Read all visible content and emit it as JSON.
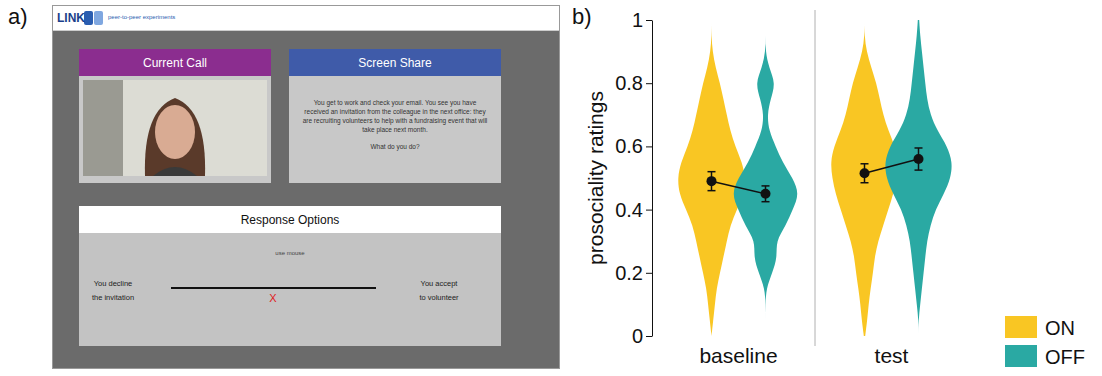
{
  "panel_labels": [
    "a)",
    "b)"
  ],
  "interface": {
    "logo": "LINK",
    "logo_subtitle": "peer-to-peer experiments",
    "call_panel": {
      "title": "Current Call"
    },
    "share_panel": {
      "title": "Screen Share",
      "paragraphs": [
        "You get to work and check your email. You see you have received an invitation from the colleague in the next office: they are recruiting volunteers to help with a fundraising event that will take place next month.",
        "What do you do?"
      ]
    },
    "response_panel": {
      "title": "Response Options",
      "hint": "use mouse",
      "left_label": [
        "You decline",
        "the invitation"
      ],
      "right_label": [
        "You accept",
        "to volunteer"
      ],
      "marker": "X"
    }
  },
  "chart_data": {
    "type": "violin",
    "y_label": "prosociality ratings",
    "categories": [
      "baseline",
      "test"
    ],
    "ylim": [
      0,
      1
    ],
    "yticks": [
      0,
      0.2,
      0.4,
      0.6,
      0.8,
      1
    ],
    "legend": "lower right",
    "density_y": [
      0,
      0.05,
      0.1,
      0.15,
      0.2,
      0.25,
      0.3,
      0.35,
      0.4,
      0.45,
      0.5,
      0.55,
      0.6,
      0.65,
      0.7,
      0.75,
      0.8,
      0.85,
      0.9,
      0.95,
      1
    ],
    "series": [
      {
        "name": "ON",
        "color": "#f9c623",
        "values": [
          0.49,
          0.515
        ],
        "errors": [
          0.03,
          0.03
        ],
        "densities": [
          [
            0,
            0.05,
            0.1,
            0.15,
            0.25,
            0.35,
            0.45,
            0.55,
            0.75,
            0.95,
            1.0,
            0.9,
            0.7,
            0.55,
            0.45,
            0.35,
            0.25,
            0.12,
            0.03,
            0,
            0
          ],
          [
            0.02,
            0.08,
            0.12,
            0.18,
            0.25,
            0.3,
            0.4,
            0.55,
            0.7,
            0.85,
            0.95,
            1.0,
            0.9,
            0.7,
            0.55,
            0.45,
            0.35,
            0.2,
            0.06,
            0,
            0
          ]
        ]
      },
      {
        "name": "OFF",
        "color": "#2aa9a3",
        "values": [
          0.45,
          0.56
        ],
        "errors": [
          0.025,
          0.035
        ],
        "densities": [
          [
            0,
            0,
            0,
            0.02,
            0.2,
            0.35,
            0.3,
            0.6,
            0.8,
            1.0,
            0.8,
            0.5,
            0.3,
            0.1,
            0.05,
            0.15,
            0.3,
            0.1,
            0,
            0,
            0
          ],
          [
            0,
            0,
            0.05,
            0.1,
            0.15,
            0.2,
            0.25,
            0.35,
            0.5,
            0.75,
            0.95,
            1.0,
            0.85,
            0.55,
            0.35,
            0.25,
            0.2,
            0.15,
            0.1,
            0.05,
            0.02
          ]
        ]
      }
    ]
  }
}
